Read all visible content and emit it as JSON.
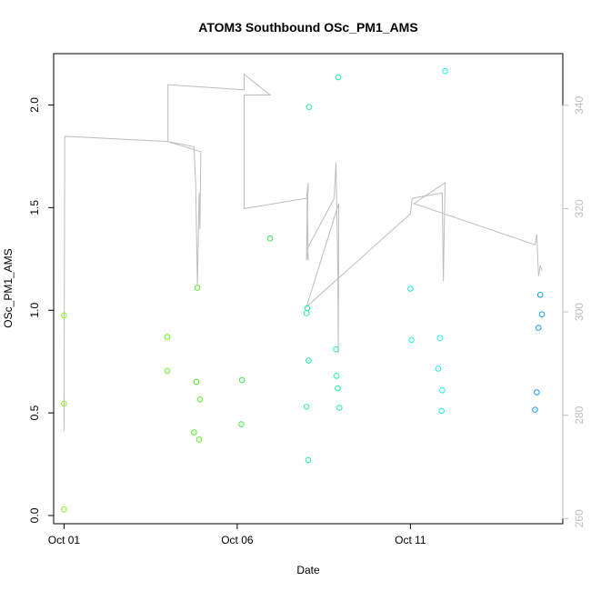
{
  "chart_data": {
    "type": "scatter",
    "title": "ATOM3 Southbound OSc_PM1_AMS",
    "xlabel": "Date",
    "ylabel": "OSc_PM1_AMS",
    "x_ticks": [
      {
        "label": "Oct 01",
        "value": 0
      },
      {
        "label": "Oct 06",
        "value": 5
      },
      {
        "label": "Oct 11",
        "value": 10
      }
    ],
    "y_ticks": [
      "0.0",
      "0.5",
      "1.0",
      "1.5",
      "2.0"
    ],
    "y2_ticks": [
      "260",
      "280",
      "300",
      "320",
      "340"
    ],
    "xlim": [
      -0.3,
      14.4
    ],
    "ylim": [
      -0.04,
      2.25
    ],
    "y2lim": [
      259,
      350
    ],
    "grid": false,
    "colors": {
      "line": "#bdbdbd",
      "right_axis": "#bdbdbd",
      "points_early": "#66ee22",
      "points_mid": "#22eecc",
      "points_late": "#1199ee"
    },
    "points": [
      {
        "x": 0.0,
        "y": 0.03,
        "color": "#88ee22"
      },
      {
        "x": 0.0,
        "y": 0.545,
        "color": "#88ee22"
      },
      {
        "x": 0.0,
        "y": 0.975,
        "color": "#88ee22"
      },
      {
        "x": 2.98,
        "y": 0.705,
        "color": "#66ee22"
      },
      {
        "x": 2.98,
        "y": 0.87,
        "color": "#66ee22"
      },
      {
        "x": 3.75,
        "y": 0.405,
        "color": "#55ee22"
      },
      {
        "x": 3.82,
        "y": 0.65,
        "color": "#55ee22"
      },
      {
        "x": 3.85,
        "y": 1.11,
        "color": "#55ee22"
      },
      {
        "x": 3.9,
        "y": 0.37,
        "color": "#55ee22"
      },
      {
        "x": 3.93,
        "y": 0.565,
        "color": "#55ee22"
      },
      {
        "x": 5.12,
        "y": 0.445,
        "color": "#44ee44"
      },
      {
        "x": 5.14,
        "y": 0.66,
        "color": "#44ee44"
      },
      {
        "x": 5.95,
        "y": 1.35,
        "color": "#33ee55"
      },
      {
        "x": 7.0,
        "y": 0.53,
        "color": "#22ee99"
      },
      {
        "x": 7.0,
        "y": 0.985,
        "color": "#22ee99"
      },
      {
        "x": 7.02,
        "y": 1.01,
        "color": "#22ee99"
      },
      {
        "x": 7.05,
        "y": 0.27,
        "color": "#22ee99"
      },
      {
        "x": 7.06,
        "y": 0.755,
        "color": "#22ee99"
      },
      {
        "x": 7.07,
        "y": 1.99,
        "color": "#22ee99"
      },
      {
        "x": 7.85,
        "y": 0.81,
        "color": "#22eeaa"
      },
      {
        "x": 7.87,
        "y": 0.68,
        "color": "#22eeaa"
      },
      {
        "x": 7.9,
        "y": 0.62,
        "color": "#22eeaa"
      },
      {
        "x": 7.92,
        "y": 2.135,
        "color": "#22eeaa"
      },
      {
        "x": 7.95,
        "y": 0.525,
        "color": "#22eeaa"
      },
      {
        "x": 10.0,
        "y": 1.105,
        "color": "#22eedd"
      },
      {
        "x": 10.03,
        "y": 0.855,
        "color": "#22eedd"
      },
      {
        "x": 10.8,
        "y": 0.715,
        "color": "#22eeee"
      },
      {
        "x": 10.85,
        "y": 0.865,
        "color": "#22eeee"
      },
      {
        "x": 10.9,
        "y": 0.51,
        "color": "#22eeee"
      },
      {
        "x": 10.92,
        "y": 0.61,
        "color": "#22eeee"
      },
      {
        "x": 11.0,
        "y": 2.165,
        "color": "#22eeee"
      },
      {
        "x": 13.6,
        "y": 0.515,
        "color": "#1199ee"
      },
      {
        "x": 13.65,
        "y": 0.6,
        "color": "#1199ee"
      },
      {
        "x": 13.7,
        "y": 0.915,
        "color": "#1199ee"
      },
      {
        "x": 13.75,
        "y": 1.075,
        "color": "#1199ee"
      },
      {
        "x": 13.8,
        "y": 0.98,
        "color": "#1199ee"
      }
    ],
    "line_series": [
      {
        "x": 0.0,
        "y2": 277
      },
      {
        "x": 0.02,
        "y2": 334
      },
      {
        "x": 3.0,
        "y2": 333
      },
      {
        "x": 3.75,
        "y2": 332
      },
      {
        "x": 3.8,
        "y2": 325
      },
      {
        "x": 3.85,
        "y2": 305
      },
      {
        "x": 3.9,
        "y2": 323
      },
      {
        "x": 3.92,
        "y2": 316
      },
      {
        "x": 3.95,
        "y2": 331
      },
      {
        "x": 3.0,
        "y2": 333
      },
      {
        "x": 3.0,
        "y2": 344
      },
      {
        "x": 5.2,
        "y2": 343
      },
      {
        "x": 5.2,
        "y2": 346
      },
      {
        "x": 5.95,
        "y2": 342
      },
      {
        "x": 5.2,
        "y2": 342
      },
      {
        "x": 5.2,
        "y2": 320
      },
      {
        "x": 7.0,
        "y2": 322
      },
      {
        "x": 7.05,
        "y2": 325
      },
      {
        "x": 7.0,
        "y2": 310
      },
      {
        "x": 7.02,
        "y2": 322
      },
      {
        "x": 7.05,
        "y2": 310
      },
      {
        "x": 7.0,
        "y2": 312
      },
      {
        "x": 7.8,
        "y2": 322
      },
      {
        "x": 7.85,
        "y2": 329
      },
      {
        "x": 7.9,
        "y2": 310
      },
      {
        "x": 7.92,
        "y2": 292
      },
      {
        "x": 7.93,
        "y2": 321
      },
      {
        "x": 7.0,
        "y2": 301
      },
      {
        "x": 10.0,
        "y2": 319
      },
      {
        "x": 10.05,
        "y2": 322
      },
      {
        "x": 10.9,
        "y2": 323
      },
      {
        "x": 10.92,
        "y2": 323
      },
      {
        "x": 10.95,
        "y2": 306
      },
      {
        "x": 11.0,
        "y2": 325
      },
      {
        "x": 10.1,
        "y2": 321
      },
      {
        "x": 13.6,
        "y2": 313
      },
      {
        "x": 13.65,
        "y2": 315
      },
      {
        "x": 13.7,
        "y2": 307
      },
      {
        "x": 13.75,
        "y2": 309
      },
      {
        "x": 13.8,
        "y2": 308
      }
    ]
  }
}
